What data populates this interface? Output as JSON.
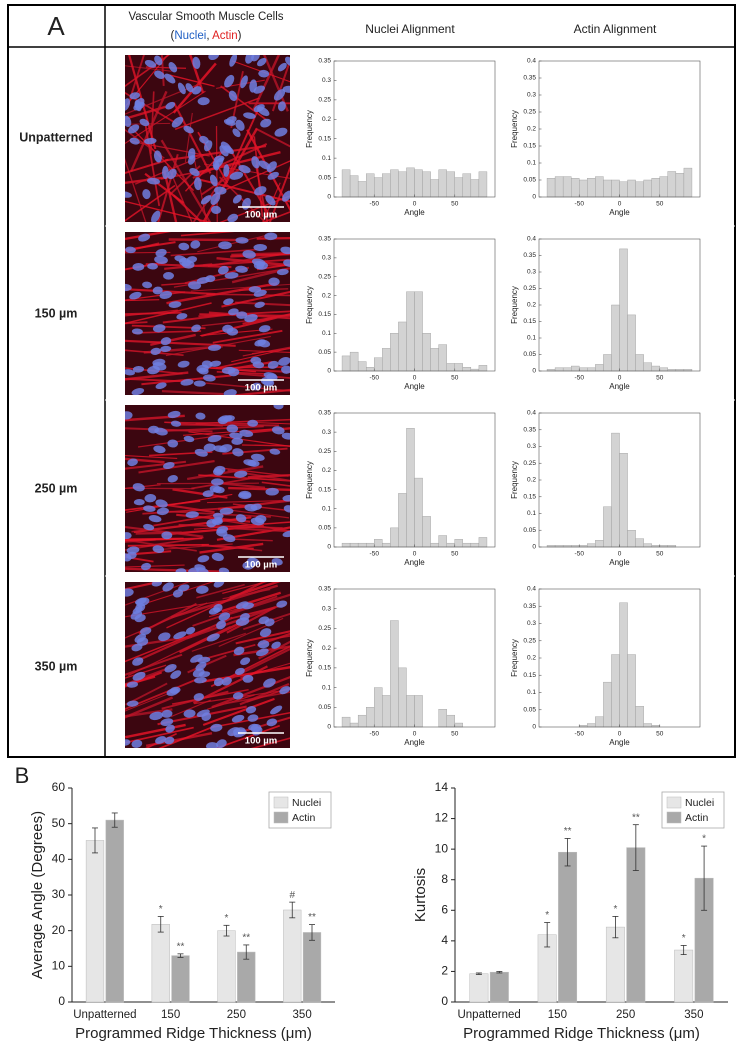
{
  "panel_a": {
    "label": "A",
    "header": {
      "title": "Vascular Smooth Muscle Cells",
      "subtitle_parts": [
        "(",
        "Nuclei",
        ", ",
        "Actin",
        ")"
      ],
      "col2": "Nuclei Alignment",
      "col3": "Actin Alignment"
    },
    "rows": [
      {
        "label": "Unpatterned",
        "scale_bar": "100 µm"
      },
      {
        "label": "150 µm",
        "scale_bar": "100 µm"
      },
      {
        "label": "250 µm",
        "scale_bar": "100 µm"
      },
      {
        "label": "350 µm",
        "scale_bar": "100 µm"
      }
    ]
  },
  "panel_b": {
    "label": "B"
  },
  "chart_data": [
    {
      "type": "histogram",
      "bins": [
        -90,
        -80,
        -70,
        -60,
        -50,
        -40,
        -30,
        -20,
        -10,
        0,
        10,
        20,
        30,
        40,
        50,
        60,
        70,
        80,
        90
      ],
      "values": [
        0.07,
        0.055,
        0.04,
        0.06,
        0.05,
        0.06,
        0.07,
        0.065,
        0.075,
        0.07,
        0.065,
        0.045,
        0.07,
        0.065,
        0.05,
        0.06,
        0.045,
        0.065
      ],
      "color": "#d3d3d3",
      "xlim": [
        -100,
        100
      ],
      "ylim": [
        0,
        0.35
      ],
      "yticks": [
        0,
        0.05,
        0.1,
        0.15,
        0.2,
        0.25,
        0.3,
        0.35
      ],
      "xticks": [
        -50,
        0,
        50
      ],
      "xlabel": "Angle",
      "ylabel": "Frequency"
    },
    {
      "type": "histogram",
      "bins": [
        -90,
        -80,
        -70,
        -60,
        -50,
        -40,
        -30,
        -20,
        -10,
        0,
        10,
        20,
        30,
        40,
        50,
        60,
        70,
        80,
        90
      ],
      "values": [
        0.055,
        0.06,
        0.06,
        0.055,
        0.05,
        0.055,
        0.06,
        0.05,
        0.05,
        0.045,
        0.05,
        0.045,
        0.05,
        0.055,
        0.06,
        0.075,
        0.07,
        0.085
      ],
      "color": "#d3d3d3",
      "xlim": [
        -100,
        100
      ],
      "ylim": [
        0,
        0.4
      ],
      "yticks": [
        0,
        0.05,
        0.1,
        0.15,
        0.2,
        0.25,
        0.3,
        0.35,
        0.4
      ],
      "xticks": [
        -50,
        0,
        50
      ],
      "xlabel": "Angle",
      "ylabel": "Frequency"
    },
    {
      "type": "histogram",
      "bins": [
        -90,
        -80,
        -70,
        -60,
        -50,
        -40,
        -30,
        -20,
        -10,
        0,
        10,
        20,
        30,
        40,
        50,
        60,
        70,
        80,
        90
      ],
      "values": [
        0.04,
        0.05,
        0.025,
        0.01,
        0.035,
        0.06,
        0.1,
        0.13,
        0.21,
        0.21,
        0.1,
        0.06,
        0.07,
        0.02,
        0.02,
        0.01,
        0.005,
        0.015
      ],
      "color": "#d3d3d3",
      "xlim": [
        -100,
        100
      ],
      "ylim": [
        0,
        0.35
      ],
      "yticks": [
        0,
        0.05,
        0.1,
        0.15,
        0.2,
        0.25,
        0.3,
        0.35
      ],
      "xticks": [
        -50,
        0,
        50
      ],
      "xlabel": "Angle",
      "ylabel": "Frequency"
    },
    {
      "type": "histogram",
      "bins": [
        -90,
        -80,
        -70,
        -60,
        -50,
        -40,
        -30,
        -20,
        -10,
        0,
        10,
        20,
        30,
        40,
        50,
        60,
        70,
        80,
        90
      ],
      "values": [
        0.005,
        0.01,
        0.01,
        0.015,
        0.01,
        0.01,
        0.02,
        0.05,
        0.2,
        0.37,
        0.17,
        0.05,
        0.025,
        0.015,
        0.01,
        0.005,
        0.005,
        0.005
      ],
      "color": "#d3d3d3",
      "xlim": [
        -100,
        100
      ],
      "ylim": [
        0,
        0.4
      ],
      "yticks": [
        0,
        0.05,
        0.1,
        0.15,
        0.2,
        0.25,
        0.3,
        0.35,
        0.4
      ],
      "xticks": [
        -50,
        0,
        50
      ],
      "xlabel": "Angle",
      "ylabel": "Frequency"
    },
    {
      "type": "histogram",
      "bins": [
        -90,
        -80,
        -70,
        -60,
        -50,
        -40,
        -30,
        -20,
        -10,
        0,
        10,
        20,
        30,
        40,
        50,
        60,
        70,
        80,
        90
      ],
      "values": [
        0.01,
        0.01,
        0.01,
        0.01,
        0.02,
        0.01,
        0.05,
        0.14,
        0.31,
        0.18,
        0.08,
        0.01,
        0.03,
        0.01,
        0.02,
        0.01,
        0.01,
        0.025
      ],
      "color": "#d3d3d3",
      "xlim": [
        -100,
        100
      ],
      "ylim": [
        0,
        0.35
      ],
      "yticks": [
        0,
        0.05,
        0.1,
        0.15,
        0.2,
        0.25,
        0.3,
        0.35
      ],
      "xticks": [
        -50,
        0,
        50
      ],
      "xlabel": "Angle",
      "ylabel": "Frequency"
    },
    {
      "type": "histogram",
      "bins": [
        -90,
        -80,
        -70,
        -60,
        -50,
        -40,
        -30,
        -20,
        -10,
        0,
        10,
        20,
        30,
        40,
        50,
        60,
        70,
        80,
        90
      ],
      "values": [
        0.005,
        0.005,
        0.005,
        0.005,
        0.005,
        0.01,
        0.02,
        0.12,
        0.34,
        0.28,
        0.05,
        0.025,
        0.01,
        0.005,
        0.005,
        0.005,
        0,
        0
      ],
      "color": "#d3d3d3",
      "xlim": [
        -100,
        100
      ],
      "ylim": [
        0,
        0.4
      ],
      "yticks": [
        0,
        0.05,
        0.1,
        0.15,
        0.2,
        0.25,
        0.3,
        0.35,
        0.4
      ],
      "xticks": [
        -50,
        0,
        50
      ],
      "xlabel": "Angle",
      "ylabel": "Frequency"
    },
    {
      "type": "histogram",
      "bins": [
        -90,
        -80,
        -70,
        -60,
        -50,
        -40,
        -30,
        -20,
        -10,
        0,
        10,
        20,
        30,
        40,
        50,
        60,
        70,
        80,
        90
      ],
      "values": [
        0.025,
        0.01,
        0.03,
        0.05,
        0.1,
        0.08,
        0.27,
        0.15,
        0.08,
        0.08,
        0,
        0,
        0.045,
        0.03,
        0.01,
        0,
        0,
        0
      ],
      "color": "#d3d3d3",
      "xlim": [
        -100,
        100
      ],
      "ylim": [
        0,
        0.35
      ],
      "yticks": [
        0,
        0.05,
        0.1,
        0.15,
        0.2,
        0.25,
        0.3,
        0.35
      ],
      "xticks": [
        -50,
        0,
        50
      ],
      "xlabel": "Angle",
      "ylabel": "Frequency"
    },
    {
      "type": "histogram",
      "bins": [
        -90,
        -80,
        -70,
        -60,
        -50,
        -40,
        -30,
        -20,
        -10,
        0,
        10,
        20,
        30,
        40,
        50,
        60,
        70,
        80,
        90
      ],
      "values": [
        0,
        0,
        0,
        0,
        0.005,
        0.01,
        0.03,
        0.13,
        0.21,
        0.36,
        0.21,
        0.06,
        0.01,
        0.005,
        0,
        0,
        0,
        0
      ],
      "color": "#d3d3d3",
      "xlim": [
        -100,
        100
      ],
      "ylim": [
        0,
        0.4
      ],
      "yticks": [
        0,
        0.05,
        0.1,
        0.15,
        0.2,
        0.25,
        0.3,
        0.35,
        0.4
      ],
      "xticks": [
        -50,
        0,
        50
      ],
      "xlabel": "Angle",
      "ylabel": "Frequency"
    },
    {
      "type": "bar",
      "ylabel": "Average Angle (Degrees)",
      "xlabel": "Programmed Ridge Thickness (μm)",
      "categories": [
        "Unpatterned",
        "150",
        "250",
        "350"
      ],
      "series": [
        {
          "name": "Nuclei",
          "color": "#e6e6e6",
          "values": [
            45.3,
            21.8,
            20,
            25.8
          ],
          "errors": [
            3.5,
            2.2,
            1.5,
            2.2
          ],
          "annotations": [
            null,
            "*",
            "*",
            "#"
          ]
        },
        {
          "name": "Actin",
          "color": "#a9a9a9",
          "values": [
            51,
            13,
            14,
            19.5
          ],
          "errors": [
            2,
            0.5,
            2,
            2.2
          ],
          "annotations": [
            null,
            "**",
            "**",
            "**"
          ]
        }
      ],
      "ylim": [
        0,
        60
      ],
      "yticks": [
        0,
        10,
        20,
        30,
        40,
        50,
        60
      ],
      "legend": "upper right"
    },
    {
      "type": "bar",
      "ylabel": "Kurtosis",
      "xlabel": "Programmed Ridge Thickness (μm)",
      "categories": [
        "Unpatterned",
        "150",
        "250",
        "350"
      ],
      "series": [
        {
          "name": "Nuclei",
          "color": "#e6e6e6",
          "values": [
            1.85,
            4.4,
            4.9,
            3.4
          ],
          "errors": [
            0.05,
            0.8,
            0.7,
            0.3
          ],
          "annotations": [
            null,
            "*",
            "*",
            "*"
          ]
        },
        {
          "name": "Actin",
          "color": "#a9a9a9",
          "values": [
            1.95,
            9.8,
            10.1,
            8.1
          ],
          "errors": [
            0.05,
            0.9,
            1.5,
            2.1
          ],
          "annotations": [
            null,
            "**",
            "**",
            "*"
          ]
        }
      ],
      "ylim": [
        0,
        14
      ],
      "yticks": [
        0,
        2,
        4,
        6,
        8,
        10,
        12,
        14
      ],
      "legend": "upper right"
    }
  ]
}
